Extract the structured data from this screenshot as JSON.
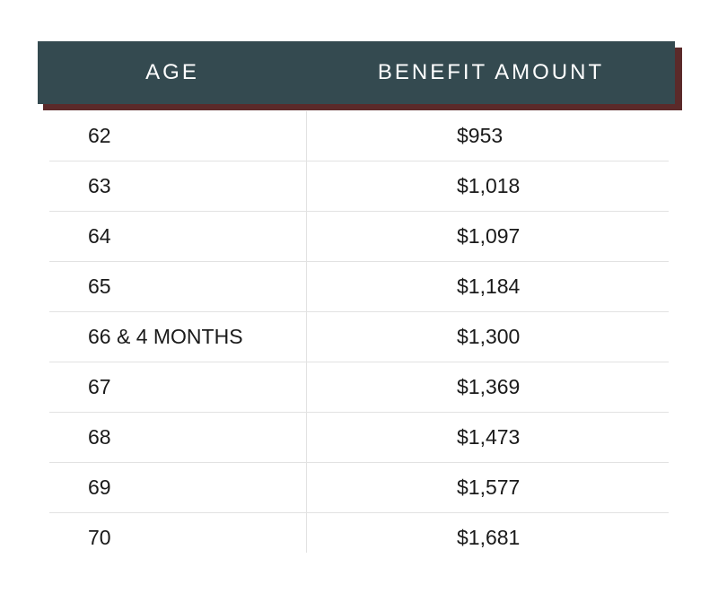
{
  "table": {
    "headers": {
      "age": "AGE",
      "amount": "BENEFIT AMOUNT"
    },
    "rows": [
      {
        "age": "62",
        "amount": "$953"
      },
      {
        "age": "63",
        "amount": "$1,018"
      },
      {
        "age": "64",
        "amount": "$1,097"
      },
      {
        "age": "65",
        "amount": "$1,184"
      },
      {
        "age": "66 & 4 MONTHS",
        "amount": "$1,300"
      },
      {
        "age": "67",
        "amount": "$1,369"
      },
      {
        "age": "68",
        "amount": "$1,473"
      },
      {
        "age": "69",
        "amount": "$1,577"
      },
      {
        "age": "70",
        "amount": "$1,681"
      }
    ]
  },
  "colors": {
    "header_background": "#344a50",
    "header_shadow": "#5b2a2a",
    "header_text": "#ffffff",
    "body_text": "#1a1a1a",
    "divider": "#e2e2e2"
  }
}
